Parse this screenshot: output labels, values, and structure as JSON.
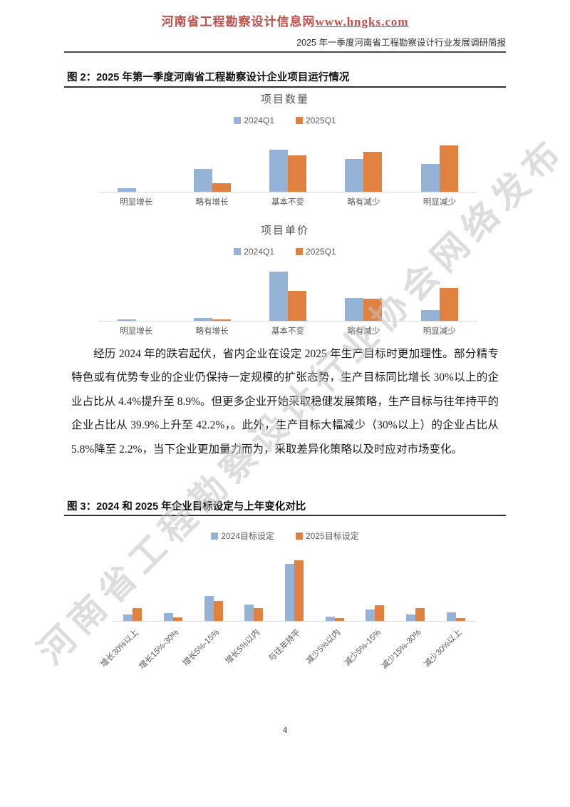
{
  "header": {
    "site_name": "河南省工程勘察设计信息网",
    "site_url": "www.hngks.com",
    "report_title": "2025 年一季度河南省工程勘察设计行业发展调研简报"
  },
  "watermark": {
    "text": "河南省工程勘察设计行业协会网络发布"
  },
  "figures": {
    "fig2_caption": "图 2：2025 年第一季度河南省工程勘察设计企业项目运行情况",
    "fig3_caption": "图 3：2024 和 2025 年企业目标设定与上年变化对比"
  },
  "paragraph": "经历 2024 年的跌宕起伏，省内企业在设定 2025 年生产目标时更加理性。部分精专特色或有优势专业的企业仍保持一定规模的扩张态势，生产目标同比增长 30%以上的企业占比从 4.4%提升至 8.9%。但更多企业开始采取稳健发展策略，生产目标与往年持平的企业占比从 39.9%上升至 42.2%，。此外，生产目标大幅减少（30%以上）的企业占比从 5.8%降至 2.2%，当下企业更加量力而为，采取差异化策略以及时应对市场变化。",
  "page_number": "4",
  "colors": {
    "header_red": "#bf4f48",
    "series_2024": "#94b3d7",
    "series_2025": "#e0813f",
    "chart_text": "#595959",
    "axis_line": "#d9d9d9"
  },
  "chart_data": [
    {
      "type": "bar",
      "title": "项目数量",
      "categories": [
        "明显增长",
        "略有增长",
        "基本不变",
        "略有减少",
        "明显减少"
      ],
      "series": [
        {
          "name": "2024Q1",
          "values": [
            2.8,
            17.7,
            32.6,
            25.4,
            21.5
          ]
        },
        {
          "name": "2025Q1",
          "values": [
            0,
            6.6,
            28.2,
            30.9,
            35.9
          ]
        }
      ],
      "xlabel": "",
      "ylabel": "",
      "ylim": [
        0,
        40
      ],
      "grid": false,
      "legend_position": "top",
      "note": "values are estimated percentages, axis values not shown in source"
    },
    {
      "type": "bar",
      "title": "项目单价",
      "categories": [
        "明显增长",
        "略有增长",
        "基本不变",
        "略有减少",
        "明显减少"
      ],
      "series": [
        {
          "name": "2024Q1",
          "values": [
            1.6,
            3.3,
            56.6,
            26.2,
            12.3
          ]
        },
        {
          "name": "2025Q1",
          "values": [
            0,
            1.7,
            34.7,
            25.6,
            38.0
          ]
        }
      ],
      "xlabel": "",
      "ylabel": "",
      "ylim": [
        0,
        60
      ],
      "grid": false,
      "legend_position": "top",
      "note": "values are estimated percentages, axis values not shown in source"
    },
    {
      "type": "bar",
      "title": "",
      "categories": [
        "增长30%以上",
        "增长15%-30%",
        "增长5%-15%",
        "增长5%以内",
        "与往年持平",
        "减少5%以内",
        "减少5%-15%",
        "减少15%-30%",
        "减少30%以上"
      ],
      "series": [
        {
          "name": "2024目标设定",
          "values": [
            4.4,
            5.5,
            17.4,
            11.5,
            39.9,
            2.8,
            8.0,
            4.6,
            5.8
          ]
        },
        {
          "name": "2025目标设定",
          "values": [
            8.9,
            2.5,
            13.8,
            8.9,
            42.2,
            2.0,
            11.0,
            8.9,
            2.2
          ]
        }
      ],
      "xlabel": "",
      "ylabel": "",
      "ylim": [
        0,
        45
      ],
      "grid": false,
      "legend_position": "top",
      "note": "4.4→8.9, 39.9→42.2, 5.8→2.2 confirmed by body text; others estimated"
    }
  ]
}
